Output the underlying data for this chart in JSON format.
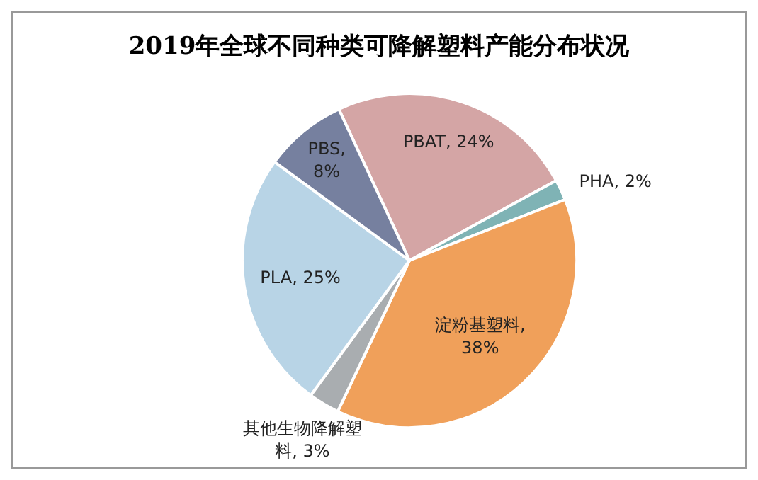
{
  "chart_data": {
    "type": "pie",
    "title": "2019年全球不同种类可降解塑料产能分布状况",
    "categories": [
      "PBAT",
      "PHA",
      "淀粉基塑料",
      "其他生物降解塑料",
      "PLA",
      "PBS"
    ],
    "values": [
      24,
      2,
      38,
      3,
      25,
      8
    ],
    "colors": [
      "#d4a5a5",
      "#7fb3b5",
      "#f0a05a",
      "#a9adb0",
      "#b8d4e6",
      "#76809f"
    ],
    "value_labels": [
      ", 24%",
      ", 2%",
      ", 38%",
      ", 3%",
      ", 25%",
      ", 8%"
    ]
  }
}
